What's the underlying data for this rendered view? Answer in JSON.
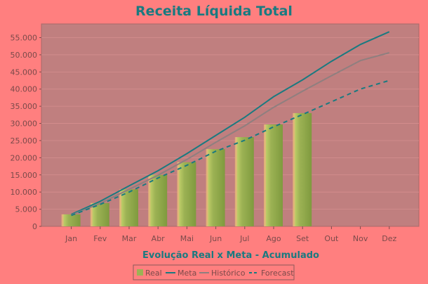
{
  "colors": {
    "page_bg": "#ff7f7f",
    "plot_bg": "#c07f7f",
    "grid": "#d68f8f",
    "title": "#1a7a80",
    "axis_text": "#7a4a4a",
    "bar_fill": "#9cb254",
    "bar_highlight": "#c8d56e",
    "meta_line": "#1a7a80",
    "historico_line": "#8f7f7f",
    "forecast_line": "#1a7a80"
  },
  "chart_data": {
    "type": "bar",
    "title": "Receita Líquida Total",
    "xlabel": "Evolução Real x Meta - Acumulado",
    "ylabel": "",
    "ylim": [
      0,
      59000
    ],
    "yticks": [
      0,
      5000,
      10000,
      15000,
      20000,
      25000,
      30000,
      35000,
      40000,
      45000,
      50000,
      55000
    ],
    "ytick_labels": [
      "0",
      "5.000",
      "10.000",
      "15.000",
      "20.000",
      "25.000",
      "30.000",
      "35.000",
      "40.000",
      "45.000",
      "50.000",
      "55.000"
    ],
    "categories": [
      "Jan",
      "Fev",
      "Mar",
      "Abr",
      "Mai",
      "Jun",
      "Jul",
      "Ago",
      "Set",
      "Out",
      "Nov",
      "Dez"
    ],
    "grid": true,
    "legend_position": "bottom",
    "series": [
      {
        "name": "Real",
        "kind": "bar",
        "values": [
          3500,
          6800,
          10800,
          15000,
          18700,
          22500,
          26000,
          29700,
          33000,
          null,
          null,
          null
        ]
      },
      {
        "name": "Meta",
        "kind": "line",
        "values": [
          3500,
          7300,
          11800,
          16200,
          21200,
          26500,
          31800,
          37800,
          42700,
          48100,
          53000,
          56700
        ]
      },
      {
        "name": "Histórico",
        "kind": "line",
        "values": [
          3300,
          6700,
          10800,
          14900,
          19500,
          24500,
          29300,
          34700,
          39400,
          43900,
          48300,
          50600
        ]
      },
      {
        "name": "Forecast",
        "kind": "dashed-line",
        "values": [
          3200,
          6400,
          10000,
          14100,
          17800,
          21900,
          25100,
          29000,
          32600,
          36300,
          40000,
          42500
        ]
      }
    ]
  }
}
